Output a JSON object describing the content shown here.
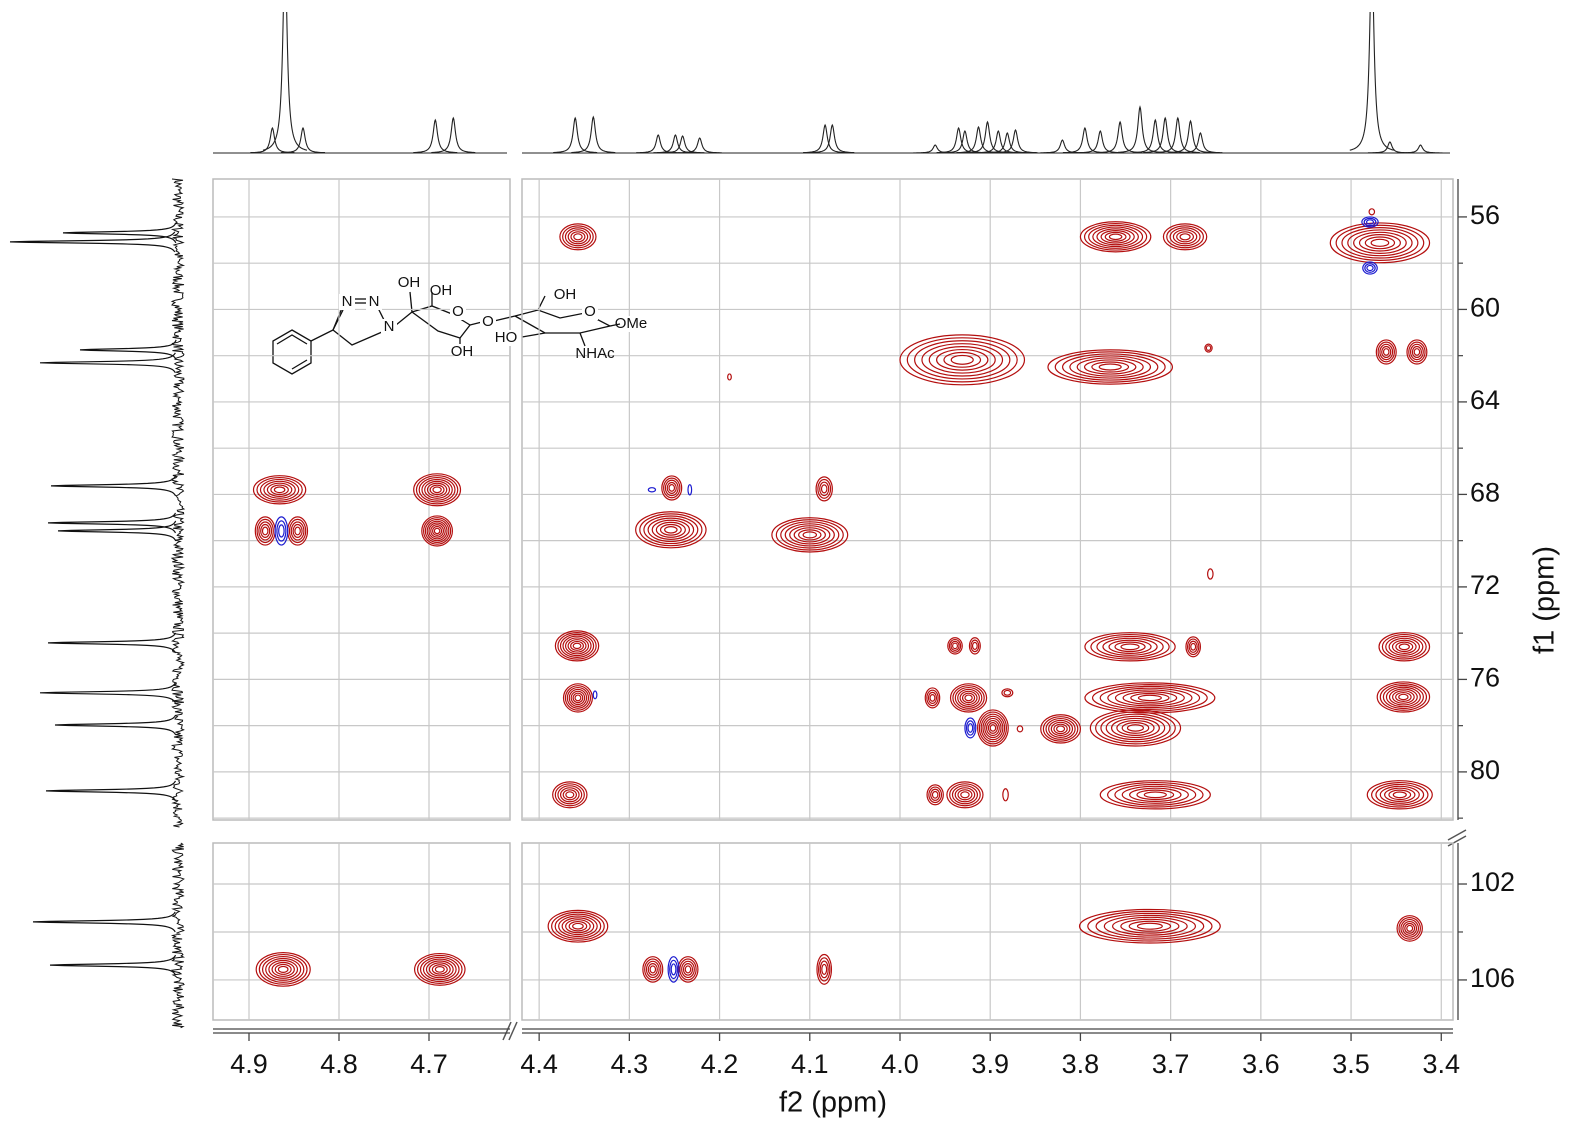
{
  "chart_data": {
    "type": "hsqc",
    "xlabel": "f2 (ppm)",
    "ylabel": "f1 (ppm)",
    "x_segments": [
      {
        "xlim": [
          4.94,
          4.61
        ],
        "xticks": [
          4.9,
          4.8,
          4.7
        ]
      },
      {
        "xlim": [
          4.419,
          3.387
        ],
        "xticks": [
          4.4,
          4.3,
          4.2,
          4.1,
          {
            "value": 4,
            "label": "4.0"
          },
          3.9,
          3.8,
          3.7,
          3.6,
          3.5,
          3.4
        ]
      }
    ],
    "y_segments": [
      {
        "ylim": [
          54.36,
          82.08
        ],
        "yticks": [
          56,
          60,
          64,
          68,
          72,
          76,
          80
        ],
        "yminorticks": [
          58,
          62,
          66,
          70,
          74,
          78,
          82
        ]
      },
      {
        "ylim": [
          100.29,
          107.67
        ],
        "yticks": [
          102,
          106
        ],
        "yminorticks": [
          104
        ]
      }
    ],
    "grid": true,
    "series": [
      {
        "color": "#b40f0f",
        "x": [
          4.357,
          3.761,
          3.684,
          3.468,
          3.931,
          3.767,
          3.461,
          3.427,
          3.658,
          4.866,
          4.691,
          4.882,
          4.846,
          4.691,
          4.253,
          4.254,
          4.1,
          4.084,
          3.656,
          4.358,
          3.939,
          3.917,
          3.745,
          3.675,
          3.441,
          4.357,
          3.964,
          3.924,
          3.881,
          3.723,
          3.442,
          3.897,
          3.822,
          3.739,
          3.867,
          4.366,
          3.961,
          3.928,
          3.883,
          3.717,
          3.446,
          4.357,
          3.723,
          3.435,
          4.862,
          4.688,
          4.274,
          4.235,
          4.084,
          4.189,
          3.477
        ],
        "y": [
          56.86,
          56.86,
          56.86,
          57.12,
          62.18,
          62.49,
          61.84,
          61.84,
          61.67,
          67.8,
          67.8,
          69.58,
          69.58,
          69.58,
          67.72,
          69.53,
          69.75,
          67.76,
          71.44,
          74.55,
          74.55,
          74.55,
          74.59,
          74.59,
          74.59,
          76.8,
          76.8,
          76.8,
          76.58,
          76.8,
          76.76,
          78.1,
          78.14,
          78.1,
          78.14,
          80.99,
          80.99,
          80.99,
          80.99,
          80.99,
          80.99,
          103.76,
          103.76,
          103.85,
          105.56,
          105.56,
          105.56,
          105.56,
          105.56,
          62.92,
          55.78
        ],
        "dx": [
          0.02,
          0.039,
          0.024,
          0.055,
          0.069,
          0.069,
          0.011,
          0.011,
          0.004,
          0.029,
          0.026,
          0.011,
          0.011,
          0.017,
          0.011,
          0.039,
          0.042,
          0.009,
          0.003,
          0.024,
          0.008,
          0.006,
          0.05,
          0.008,
          0.028,
          0.016,
          0.008,
          0.02,
          0.006,
          0.072,
          0.029,
          0.017,
          0.022,
          0.05,
          0.003,
          0.019,
          0.009,
          0.02,
          0.003,
          0.061,
          0.036,
          0.033,
          0.078,
          0.014,
          0.03,
          0.028,
          0.011,
          0.011,
          0.008,
          0.002,
          0.003
        ],
        "dy": [
          0.56,
          0.65,
          0.56,
          0.86,
          1.08,
          0.74,
          0.52,
          0.52,
          0.17,
          0.61,
          0.69,
          0.61,
          0.61,
          0.65,
          0.52,
          0.78,
          0.74,
          0.52,
          0.22,
          0.65,
          0.35,
          0.35,
          0.61,
          0.43,
          0.61,
          0.61,
          0.43,
          0.61,
          0.17,
          0.65,
          0.65,
          0.78,
          0.61,
          0.78,
          0.13,
          0.56,
          0.43,
          0.56,
          0.26,
          0.61,
          0.61,
          0.66,
          0.7,
          0.53,
          0.7,
          0.66,
          0.53,
          0.53,
          0.62,
          0.13,
          0.13
        ]
      },
      {
        "color": "#1c1cd0",
        "x": [
          4.864,
          4.275,
          4.233,
          4.338,
          3.922,
          4.251,
          3.479,
          3.479
        ],
        "y": [
          69.58,
          67.8,
          67.8,
          76.67,
          78.1,
          105.56,
          56.22,
          58.21
        ],
        "dx": [
          0.007,
          0.004,
          0.002,
          0.002,
          0.006,
          0.006,
          0.009,
          0.008
        ],
        "dy": [
          0.61,
          0.09,
          0.22,
          0.17,
          0.43,
          0.53,
          0.22,
          0.26
        ]
      }
    ],
    "top_spectrum": {
      "color": "#222222",
      "x": [
        4.86,
        4.874,
        4.84,
        4.693,
        4.673,
        4.36,
        4.34,
        4.268,
        4.249,
        4.241,
        4.222,
        4.083,
        4.075,
        3.961,
        3.935,
        3.928,
        3.913,
        3.903,
        3.891,
        3.881,
        3.872,
        3.82,
        3.795,
        3.778,
        3.756,
        3.734,
        3.717,
        3.706,
        3.692,
        3.678,
        3.667,
        3.477,
        3.457,
        3.423
      ],
      "heights": [
        200,
        25,
        25,
        33,
        35,
        35,
        36,
        18,
        18,
        17,
        15,
        28,
        28,
        8,
        25,
        22,
        26,
        31,
        22,
        20,
        23,
        13,
        25,
        22,
        31,
        46,
        33,
        35,
        35,
        32,
        20,
        200,
        11,
        8
      ]
    },
    "left_spectrum": {
      "color": "#111111",
      "y": [
        56.69,
        57.08,
        61.75,
        62.31,
        67.63,
        69.23,
        69.58,
        74.42,
        76.58,
        77.97,
        80.82,
        103.58,
        105.38
      ],
      "heights": [
        115,
        168,
        98,
        138,
        127,
        130,
        120,
        130,
        138,
        123,
        132,
        145,
        128
      ]
    },
    "structure": {
      "labels": [
        "N",
        "N",
        "N",
        "OH",
        "OH",
        "O",
        "O",
        "OH",
        "OH",
        "O",
        "HO",
        "OMe",
        "NHAc"
      ]
    }
  }
}
